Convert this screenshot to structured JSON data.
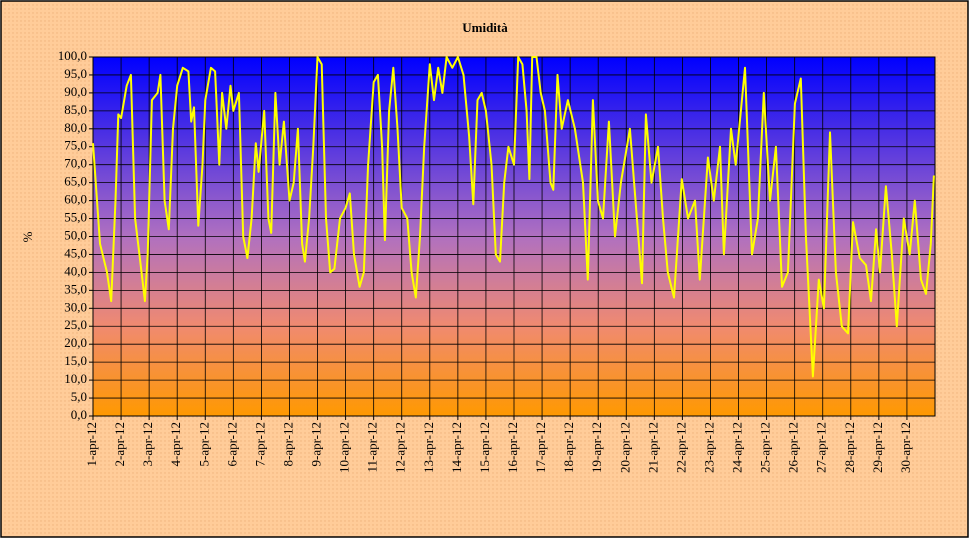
{
  "chart_data": {
    "type": "line",
    "title": "Umidità",
    "y_label": "%",
    "xlim": [
      1,
      31
    ],
    "ylim": [
      0,
      100
    ],
    "xticks": [
      {
        "value": 1,
        "label": "1-apr-12"
      },
      {
        "value": 2,
        "label": "2-apr-12"
      },
      {
        "value": 3,
        "label": "3-apr-12"
      },
      {
        "value": 4,
        "label": "4-apr-12"
      },
      {
        "value": 5,
        "label": "5-apr-12"
      },
      {
        "value": 6,
        "label": "6-apr-12"
      },
      {
        "value": 7,
        "label": "7-apr-12"
      },
      {
        "value": 8,
        "label": "8-apr-12"
      },
      {
        "value": 9,
        "label": "9-apr-12"
      },
      {
        "value": 10,
        "label": "10-apr-12"
      },
      {
        "value": 11,
        "label": "11-apr-12"
      },
      {
        "value": 12,
        "label": "12-apr-12"
      },
      {
        "value": 13,
        "label": "13-apr-12"
      },
      {
        "value": 14,
        "label": "14-apr-12"
      },
      {
        "value": 15,
        "label": "15-apr-12"
      },
      {
        "value": 16,
        "label": "16-apr-12"
      },
      {
        "value": 17,
        "label": "17-apr-12"
      },
      {
        "value": 18,
        "label": "18-apr-12"
      },
      {
        "value": 19,
        "label": "19-apr-12"
      },
      {
        "value": 20,
        "label": "20-apr-12"
      },
      {
        "value": 21,
        "label": "21-apr-12"
      },
      {
        "value": 22,
        "label": "22-apr-12"
      },
      {
        "value": 23,
        "label": "23-apr-12"
      },
      {
        "value": 24,
        "label": "24-apr-12"
      },
      {
        "value": 25,
        "label": "25-apr-12"
      },
      {
        "value": 26,
        "label": "26-apr-12"
      },
      {
        "value": 27,
        "label": "27-apr-12"
      },
      {
        "value": 28,
        "label": "28-apr-12"
      },
      {
        "value": 29,
        "label": "29-apr-12"
      },
      {
        "value": 30,
        "label": "30-apr-12"
      }
    ],
    "yticks": [
      {
        "value": 0,
        "label": "0,0"
      },
      {
        "value": 5,
        "label": "5,0"
      },
      {
        "value": 10,
        "label": "10,0"
      },
      {
        "value": 15,
        "label": "15,0"
      },
      {
        "value": 20,
        "label": "20,0"
      },
      {
        "value": 25,
        "label": "25,0"
      },
      {
        "value": 30,
        "label": "30,0"
      },
      {
        "value": 35,
        "label": "35,0"
      },
      {
        "value": 40,
        "label": "40,0"
      },
      {
        "value": 45,
        "label": "45,0"
      },
      {
        "value": 50,
        "label": "50,0"
      },
      {
        "value": 55,
        "label": "55,0"
      },
      {
        "value": 60,
        "label": "60,0"
      },
      {
        "value": 65,
        "label": "65,0"
      },
      {
        "value": 70,
        "label": "70,0"
      },
      {
        "value": 75,
        "label": "75,0"
      },
      {
        "value": 80,
        "label": "80,0"
      },
      {
        "value": 85,
        "label": "85,0"
      },
      {
        "value": 90,
        "label": "90,0"
      },
      {
        "value": 95,
        "label": "95,0"
      },
      {
        "value": 100,
        "label": "100,0"
      }
    ],
    "grid": true,
    "x": [
      1.0,
      1.25,
      1.5,
      1.65,
      1.8,
      1.9,
      2.0,
      2.2,
      2.35,
      2.5,
      2.7,
      2.85,
      2.95,
      3.1,
      3.3,
      3.4,
      3.55,
      3.7,
      3.85,
      4.0,
      4.2,
      4.4,
      4.5,
      4.6,
      4.75,
      4.9,
      5.0,
      5.2,
      5.35,
      5.5,
      5.6,
      5.75,
      5.9,
      6.0,
      6.2,
      6.35,
      6.5,
      6.65,
      6.8,
      6.9,
      7.1,
      7.25,
      7.35,
      7.5,
      7.65,
      7.8,
      8.0,
      8.15,
      8.3,
      8.45,
      8.55,
      8.7,
      8.85,
      9.0,
      9.15,
      9.3,
      9.45,
      9.6,
      9.8,
      10.0,
      10.15,
      10.3,
      10.5,
      10.65,
      10.8,
      11.0,
      11.15,
      11.3,
      11.4,
      11.55,
      11.7,
      11.85,
      12.0,
      12.2,
      12.35,
      12.5,
      12.65,
      12.8,
      13.0,
      13.15,
      13.3,
      13.45,
      13.6,
      13.8,
      14.0,
      14.2,
      14.4,
      14.55,
      14.7,
      14.85,
      15.0,
      15.2,
      15.35,
      15.5,
      15.65,
      15.8,
      16.0,
      16.15,
      16.3,
      16.45,
      16.55,
      16.65,
      16.8,
      16.95,
      17.1,
      17.3,
      17.4,
      17.55,
      17.7,
      17.92,
      18.17,
      18.46,
      18.63,
      18.81,
      18.99,
      19.17,
      19.38,
      19.6,
      19.81,
      20.13,
      20.38,
      20.56,
      20.7,
      20.9,
      21.13,
      21.31,
      21.48,
      21.7,
      21.98,
      22.2,
      22.45,
      22.62,
      22.91,
      23.12,
      23.34,
      23.48,
      23.73,
      23.9,
      24.23,
      24.48,
      24.69,
      24.9,
      25.12,
      25.33,
      25.55,
      25.76,
      26.01,
      26.22,
      26.4,
      26.65,
      26.86,
      27.04,
      27.26,
      27.47,
      27.68,
      27.9,
      28.08,
      28.32,
      28.54,
      28.72,
      28.9,
      29.04,
      29.25,
      29.46,
      29.64,
      29.89,
      30.1,
      30.28,
      30.5,
      30.68,
      30.85,
      30.96
    ],
    "series": [
      {
        "color": "#ffff00",
        "values": [
          76,
          48,
          40,
          32,
          60,
          84,
          83,
          92,
          95,
          55,
          42,
          32,
          45,
          88,
          90,
          95,
          60,
          52,
          80,
          92,
          97,
          96,
          82,
          86,
          53,
          70,
          88,
          97,
          96,
          70,
          90,
          80,
          92,
          85,
          90,
          50,
          44,
          55,
          76,
          68,
          85,
          55,
          51,
          90,
          70,
          82,
          60,
          65,
          80,
          48,
          43,
          55,
          75,
          100,
          98,
          55,
          40,
          41,
          55,
          58,
          62,
          45,
          36,
          40,
          70,
          93,
          95,
          75,
          49,
          85,
          97,
          80,
          58,
          55,
          40,
          33,
          50,
          75,
          98,
          88,
          97,
          90,
          100,
          97,
          100,
          95,
          78,
          59,
          88,
          90,
          85,
          70,
          45,
          43,
          65,
          75,
          70,
          100,
          98,
          85,
          66,
          100,
          100,
          90,
          85,
          65,
          63,
          95,
          80,
          88,
          80,
          65,
          38,
          88,
          60,
          55,
          82,
          50,
          65,
          80,
          55,
          37,
          84,
          65,
          75,
          55,
          40,
          33,
          66,
          55,
          60,
          38,
          72,
          60,
          75,
          45,
          80,
          70,
          97,
          45,
          55,
          90,
          60,
          75,
          36,
          40,
          87,
          94,
          50,
          11,
          38,
          30,
          79,
          40,
          25,
          23,
          54,
          44,
          42,
          32,
          52,
          40,
          64,
          45,
          25,
          55,
          45,
          60,
          38,
          34,
          48,
          67
        ]
      }
    ]
  }
}
